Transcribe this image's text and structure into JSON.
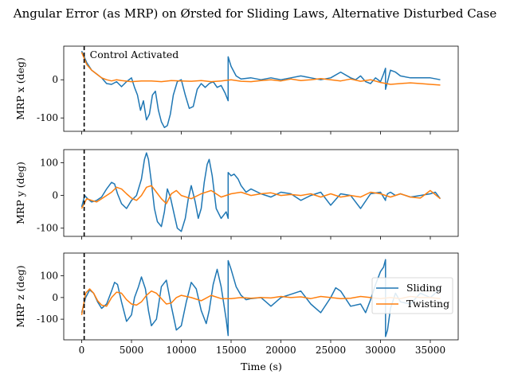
{
  "chart_data": {
    "type": "line",
    "title": "Angular Error (as MRP) on Ørsted for Sliding Laws, Alternative Disturbed Case",
    "xlabel": "Time (s)",
    "xlim": [
      -1800,
      37800
    ],
    "xticks": [
      0,
      5000,
      10000,
      15000,
      20000,
      25000,
      30000,
      35000
    ],
    "control_activated": {
      "x": 250,
      "label": "Control Activated"
    },
    "legend": {
      "location": "center-right of bottom panel",
      "entries": [
        "Sliding",
        "Twisting"
      ]
    },
    "colors": {
      "Sliding": "#1f77b4",
      "Twisting": "#ff7f0e",
      "marker": "#000000"
    },
    "panels": [
      {
        "ylabel": "MRP x (deg)",
        "ylim": [
          -135,
          88
        ],
        "yticks": [
          -100,
          0
        ],
        "series": [
          {
            "name": "Sliding",
            "x": [
              0,
              500,
              1000,
              1500,
              2000,
              2500,
              3000,
              3500,
              4000,
              4500,
              5000,
              5300,
              5600,
              5900,
              6200,
              6500,
              6800,
              7100,
              7400,
              7700,
              8000,
              8300,
              8600,
              8900,
              9200,
              9600,
              10000,
              10400,
              10800,
              11200,
              11600,
              12000,
              12400,
              12800,
              13200,
              13600,
              14000,
              14400,
              14700,
              14701,
              15000,
              15500,
              16000,
              17000,
              18000,
              19000,
              20000,
              21000,
              22000,
              23000,
              24000,
              25000,
              26000,
              27000,
              27500,
              28000,
              28500,
              29000,
              29500,
              30000,
              30300,
              30500,
              30501,
              30700,
              31000,
              31500,
              32000,
              33000,
              34000,
              35000,
              36000
            ],
            "y": [
              75,
              45,
              25,
              15,
              5,
              -10,
              -12,
              -5,
              -18,
              -5,
              5,
              -20,
              -40,
              -80,
              -55,
              -105,
              -90,
              -40,
              -30,
              -80,
              -110,
              -125,
              -120,
              -90,
              -40,
              -5,
              0,
              -40,
              -75,
              -70,
              -25,
              -10,
              -20,
              -10,
              -5,
              -20,
              -15,
              -35,
              -55,
              60,
              35,
              10,
              2,
              5,
              0,
              5,
              0,
              5,
              10,
              5,
              0,
              5,
              20,
              5,
              0,
              10,
              -5,
              -10,
              5,
              -5,
              15,
              30,
              -25,
              -5,
              25,
              20,
              10,
              5,
              5,
              5,
              0
            ],
            "note": "values estimated from plot"
          },
          {
            "name": "Twisting",
            "x": [
              0,
              500,
              1000,
              1500,
              2000,
              2500,
              3000,
              3500,
              4000,
              5000,
              6000,
              7000,
              8000,
              9000,
              10000,
              11000,
              12000,
              13000,
              14000,
              15000,
              16000,
              17000,
              18000,
              19000,
              20000,
              21000,
              22000,
              23000,
              24000,
              25000,
              26000,
              27000,
              28000,
              29000,
              30000,
              31000,
              32000,
              33000,
              34000,
              35000,
              36000
            ],
            "y": [
              72,
              40,
              25,
              15,
              5,
              0,
              -3,
              0,
              -2,
              -5,
              -3,
              -3,
              -5,
              -2,
              -3,
              -4,
              -2,
              -5,
              -3,
              0,
              -4,
              -5,
              -2,
              0,
              -3,
              2,
              -2,
              0,
              3,
              0,
              -3,
              2,
              -4,
              0,
              -7,
              -12,
              -10,
              -8,
              -10,
              -12,
              -14
            ]
          }
        ]
      },
      {
        "ylabel": "MRP y (deg)",
        "ylim": [
          -125,
          140
        ],
        "yticks": [
          -100,
          0,
          100
        ],
        "series": [
          {
            "name": "Sliding",
            "x": [
              0,
              300,
              600,
              1000,
              1500,
              2000,
              2500,
              3000,
              3300,
              3600,
              4000,
              4500,
              5000,
              5500,
              6000,
              6300,
              6500,
              6700,
              7000,
              7300,
              7600,
              8000,
              8300,
              8600,
              8900,
              9300,
              9600,
              10000,
              10400,
              10700,
              11000,
              11400,
              11700,
              12000,
              12300,
              12600,
              12800,
              13100,
              13500,
              14000,
              14500,
              14700,
              14701,
              15000,
              15300,
              15700,
              16000,
              16500,
              17000,
              18000,
              19000,
              20000,
              21000,
              22000,
              23000,
              24000,
              25000,
              26000,
              27000,
              28000,
              29000,
              30000,
              30400,
              30500,
              30501,
              30700,
              31000,
              31500,
              32000,
              33000,
              34000,
              35000,
              35500,
              36000
            ],
            "y": [
              -35,
              0,
              -10,
              -20,
              -15,
              -5,
              20,
              40,
              35,
              5,
              -25,
              -40,
              -15,
              0,
              50,
              110,
              130,
              110,
              40,
              -40,
              -80,
              -95,
              -50,
              20,
              -5,
              -60,
              -100,
              -110,
              -70,
              -10,
              30,
              -20,
              -70,
              -40,
              40,
              95,
              110,
              60,
              -40,
              -70,
              -50,
              -70,
              70,
              60,
              65,
              50,
              30,
              10,
              20,
              5,
              -5,
              10,
              5,
              -15,
              0,
              10,
              -30,
              5,
              0,
              -40,
              5,
              10,
              -10,
              -15,
              -10,
              5,
              10,
              0,
              5,
              -5,
              0,
              5,
              10,
              -10
            ]
          },
          {
            "name": "Twisting",
            "x": [
              0,
              500,
              1000,
              1500,
              2000,
              2500,
              3000,
              3500,
              4000,
              4500,
              5000,
              5500,
              6000,
              6500,
              7000,
              7500,
              8000,
              8500,
              9000,
              9500,
              10000,
              11000,
              12000,
              13000,
              14000,
              15000,
              16000,
              17000,
              18000,
              19000,
              20000,
              21000,
              22000,
              23000,
              24000,
              25000,
              26000,
              27000,
              28000,
              29000,
              30000,
              31000,
              32000,
              33000,
              34000,
              35000,
              36000
            ],
            "y": [
              -40,
              -10,
              -15,
              -20,
              -10,
              0,
              10,
              25,
              20,
              5,
              -8,
              -15,
              0,
              25,
              30,
              10,
              -10,
              -25,
              5,
              15,
              0,
              -10,
              5,
              15,
              -5,
              5,
              10,
              0,
              5,
              8,
              0,
              3,
              0,
              5,
              -5,
              5,
              -5,
              0,
              -5,
              10,
              5,
              -5,
              5,
              -5,
              -8,
              15,
              -10
            ]
          }
        ]
      },
      {
        "ylabel": "MRP z (deg)",
        "ylim": [
          -195,
          205
        ],
        "yticks": [
          -100,
          0,
          100
        ],
        "series": [
          {
            "name": "Sliding",
            "x": [
              0,
              400,
              800,
              1200,
              1600,
              2000,
              2500,
              3000,
              3300,
              3600,
              4000,
              4500,
              5000,
              5300,
              5700,
              6000,
              6400,
              6700,
              7000,
              7500,
              8000,
              8500,
              9000,
              9500,
              10000,
              10500,
              11000,
              11500,
              12000,
              12500,
              12800,
              13200,
              13600,
              14000,
              14500,
              14700,
              14701,
              15000,
              15500,
              16000,
              16500,
              17000,
              18000,
              18500,
              19000,
              20000,
              21000,
              22000,
              23000,
              24000,
              25000,
              25500,
              26000,
              27000,
              28000,
              28500,
              29000,
              29500,
              30000,
              30300,
              30500,
              30501,
              30700,
              31000,
              31500,
              32000,
              33000,
              34000,
              35000,
              36000
            ],
            "y": [
              -70,
              0,
              35,
              20,
              -20,
              -50,
              -30,
              30,
              70,
              60,
              -20,
              -110,
              -80,
              0,
              50,
              95,
              40,
              -60,
              -130,
              -100,
              50,
              80,
              -40,
              -150,
              -130,
              -20,
              70,
              40,
              -60,
              -120,
              -60,
              60,
              130,
              50,
              -100,
              -175,
              170,
              130,
              50,
              10,
              -10,
              -5,
              0,
              -20,
              -40,
              0,
              15,
              30,
              -30,
              -70,
              0,
              45,
              30,
              -40,
              -30,
              -70,
              -10,
              60,
              120,
              140,
              175,
              -180,
              -150,
              -50,
              20,
              -20,
              -30,
              20,
              0,
              40
            ]
          },
          {
            "name": "Twisting",
            "x": [
              0,
              400,
              800,
              1200,
              1600,
              2000,
              2500,
              3000,
              3500,
              4000,
              4500,
              5000,
              5500,
              6000,
              6500,
              7000,
              7500,
              8000,
              8500,
              9000,
              9500,
              10000,
              11000,
              12000,
              13000,
              14000,
              15000,
              16000,
              17000,
              18000,
              19000,
              20000,
              21000,
              22000,
              23000,
              24000,
              25000,
              26000,
              27000,
              28000,
              29000,
              30000,
              31000,
              32000,
              33000,
              34000,
              35000,
              36000
            ],
            "y": [
              -80,
              20,
              40,
              20,
              -15,
              -35,
              -40,
              0,
              25,
              20,
              -10,
              -30,
              -35,
              -20,
              10,
              30,
              20,
              -5,
              -30,
              -25,
              0,
              10,
              0,
              -15,
              10,
              -5,
              -5,
              0,
              -3,
              0,
              -2,
              5,
              0,
              3,
              -5,
              5,
              0,
              -5,
              -3,
              5,
              0,
              -5,
              0,
              -5,
              5,
              0,
              0,
              -5
            ]
          }
        ]
      }
    ]
  }
}
